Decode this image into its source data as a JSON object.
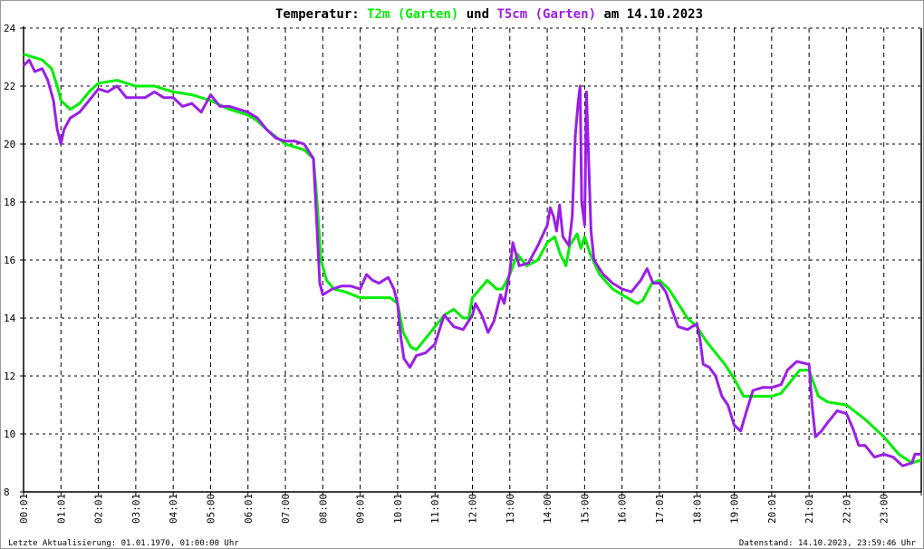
{
  "chart_data": {
    "type": "line",
    "title_parts": [
      {
        "text": "Temperatur: ",
        "color": "#000000"
      },
      {
        "text": "T2m (Garten)",
        "color": "#00ee00"
      },
      {
        "text": " und ",
        "color": "#000000"
      },
      {
        "text": "T5cm (Garten)",
        "color": "#9b1ee6"
      },
      {
        "text": " am 14.10.2023",
        "color": "#000000"
      }
    ],
    "ylim": [
      8,
      24
    ],
    "yticks": [
      "8",
      "10",
      "12",
      "14",
      "16",
      "18",
      "20",
      "22",
      "24"
    ],
    "xlim_hours": [
      0,
      24
    ],
    "xtick_labels": [
      "00:01",
      "01:01",
      "02:01",
      "03:01",
      "04:01",
      "05:00",
      "06:01",
      "07:00",
      "08:00",
      "09:01",
      "10:01",
      "11:01",
      "12:00",
      "13:00",
      "14:00",
      "15:00",
      "16:00",
      "17:01",
      "18:01",
      "19:00",
      "20:01",
      "21:01",
      "22:01",
      "23:00"
    ],
    "grid": true,
    "series": [
      {
        "name": "T2m (Garten)",
        "color": "#00ee00",
        "points": [
          [
            0,
            23.1
          ],
          [
            0.5,
            22.9
          ],
          [
            0.75,
            22.6
          ],
          [
            0.9,
            22.0
          ],
          [
            1.0,
            21.5
          ],
          [
            1.25,
            21.2
          ],
          [
            1.5,
            21.4
          ],
          [
            1.75,
            21.8
          ],
          [
            2.0,
            22.1
          ],
          [
            2.5,
            22.2
          ],
          [
            2.75,
            22.1
          ],
          [
            3.0,
            22.0
          ],
          [
            3.5,
            22.0
          ],
          [
            4.0,
            21.8
          ],
          [
            4.5,
            21.7
          ],
          [
            5.0,
            21.5
          ],
          [
            5.5,
            21.2
          ],
          [
            6.0,
            21.0
          ],
          [
            6.25,
            20.8
          ],
          [
            6.5,
            20.5
          ],
          [
            7.0,
            20.0
          ],
          [
            7.5,
            19.8
          ],
          [
            7.75,
            19.5
          ],
          [
            7.85,
            18.0
          ],
          [
            7.95,
            16.0
          ],
          [
            8.1,
            15.3
          ],
          [
            8.3,
            15.0
          ],
          [
            8.6,
            14.9
          ],
          [
            9.0,
            14.7
          ],
          [
            9.5,
            14.7
          ],
          [
            9.8,
            14.7
          ],
          [
            10.0,
            14.5
          ],
          [
            10.15,
            13.5
          ],
          [
            10.35,
            13.0
          ],
          [
            10.5,
            12.9
          ],
          [
            10.75,
            13.3
          ],
          [
            11.0,
            13.7
          ],
          [
            11.25,
            14.1
          ],
          [
            11.5,
            14.3
          ],
          [
            11.75,
            14.0
          ],
          [
            11.9,
            14.0
          ],
          [
            12.0,
            14.7
          ],
          [
            12.2,
            15.0
          ],
          [
            12.4,
            15.3
          ],
          [
            12.65,
            15.0
          ],
          [
            12.8,
            15.0
          ],
          [
            13.0,
            15.5
          ],
          [
            13.2,
            16.2
          ],
          [
            13.45,
            15.8
          ],
          [
            13.75,
            16.0
          ],
          [
            14.0,
            16.6
          ],
          [
            14.2,
            16.8
          ],
          [
            14.35,
            16.2
          ],
          [
            14.5,
            15.8
          ],
          [
            14.6,
            16.5
          ],
          [
            14.8,
            16.9
          ],
          [
            14.9,
            16.4
          ],
          [
            15.0,
            16.8
          ],
          [
            15.15,
            16.2
          ],
          [
            15.4,
            15.5
          ],
          [
            15.75,
            15.0
          ],
          [
            16.0,
            14.8
          ],
          [
            16.4,
            14.5
          ],
          [
            16.55,
            14.6
          ],
          [
            16.8,
            15.2
          ],
          [
            17.0,
            15.3
          ],
          [
            17.25,
            15.0
          ],
          [
            17.5,
            14.5
          ],
          [
            17.75,
            14.0
          ],
          [
            18.0,
            13.7
          ],
          [
            18.25,
            13.2
          ],
          [
            18.5,
            12.8
          ],
          [
            18.75,
            12.4
          ],
          [
            19.0,
            11.9
          ],
          [
            19.25,
            11.3
          ],
          [
            19.5,
            11.3
          ],
          [
            20.0,
            11.3
          ],
          [
            20.25,
            11.4
          ],
          [
            20.5,
            11.8
          ],
          [
            20.75,
            12.2
          ],
          [
            21.0,
            12.2
          ],
          [
            21.25,
            11.3
          ],
          [
            21.5,
            11.1
          ],
          [
            22.0,
            11.0
          ],
          [
            22.5,
            10.5
          ],
          [
            23.0,
            9.9
          ],
          [
            23.4,
            9.3
          ],
          [
            23.75,
            9.0
          ],
          [
            24.0,
            9.1
          ]
        ]
      },
      {
        "name": "T5cm (Garten)",
        "color": "#9b1ee6",
        "points": [
          [
            0,
            22.7
          ],
          [
            0.15,
            22.9
          ],
          [
            0.3,
            22.5
          ],
          [
            0.5,
            22.6
          ],
          [
            0.65,
            22.2
          ],
          [
            0.8,
            21.5
          ],
          [
            0.9,
            20.5
          ],
          [
            1.0,
            20.0
          ],
          [
            1.08,
            20.5
          ],
          [
            1.25,
            20.9
          ],
          [
            1.5,
            21.1
          ],
          [
            1.75,
            21.5
          ],
          [
            2.0,
            21.9
          ],
          [
            2.25,
            21.8
          ],
          [
            2.5,
            22.0
          ],
          [
            2.75,
            21.6
          ],
          [
            3.0,
            21.6
          ],
          [
            3.25,
            21.6
          ],
          [
            3.5,
            21.8
          ],
          [
            3.75,
            21.6
          ],
          [
            4.0,
            21.6
          ],
          [
            4.25,
            21.3
          ],
          [
            4.5,
            21.4
          ],
          [
            4.75,
            21.1
          ],
          [
            5.0,
            21.7
          ],
          [
            5.25,
            21.3
          ],
          [
            5.5,
            21.3
          ],
          [
            5.75,
            21.2
          ],
          [
            6.0,
            21.1
          ],
          [
            6.25,
            20.9
          ],
          [
            6.5,
            20.5
          ],
          [
            6.75,
            20.2
          ],
          [
            7.0,
            20.1
          ],
          [
            7.25,
            20.1
          ],
          [
            7.5,
            20.0
          ],
          [
            7.75,
            19.5
          ],
          [
            7.83,
            17.5
          ],
          [
            7.92,
            15.2
          ],
          [
            8.0,
            14.8
          ],
          [
            8.25,
            15.0
          ],
          [
            8.5,
            15.1
          ],
          [
            8.75,
            15.1
          ],
          [
            9.0,
            15.0
          ],
          [
            9.17,
            15.5
          ],
          [
            9.33,
            15.3
          ],
          [
            9.5,
            15.2
          ],
          [
            9.75,
            15.4
          ],
          [
            9.9,
            15.0
          ],
          [
            10.0,
            14.5
          ],
          [
            10.08,
            13.4
          ],
          [
            10.17,
            12.6
          ],
          [
            10.33,
            12.3
          ],
          [
            10.5,
            12.7
          ],
          [
            10.75,
            12.8
          ],
          [
            11.0,
            13.1
          ],
          [
            11.17,
            13.8
          ],
          [
            11.25,
            14.1
          ],
          [
            11.5,
            13.7
          ],
          [
            11.75,
            13.6
          ],
          [
            12.0,
            14.1
          ],
          [
            12.08,
            14.5
          ],
          [
            12.25,
            14.1
          ],
          [
            12.42,
            13.5
          ],
          [
            12.58,
            13.9
          ],
          [
            12.75,
            14.8
          ],
          [
            12.85,
            14.5
          ],
          [
            13.0,
            15.6
          ],
          [
            13.08,
            16.6
          ],
          [
            13.25,
            15.8
          ],
          [
            13.5,
            15.9
          ],
          [
            13.75,
            16.5
          ],
          [
            14.0,
            17.2
          ],
          [
            14.08,
            17.8
          ],
          [
            14.17,
            17.5
          ],
          [
            14.25,
            17.0
          ],
          [
            14.33,
            17.9
          ],
          [
            14.42,
            16.8
          ],
          [
            14.58,
            16.5
          ],
          [
            14.67,
            17.5
          ],
          [
            14.75,
            20.3
          ],
          [
            14.83,
            21.5
          ],
          [
            14.88,
            22.0
          ],
          [
            14.92,
            18.0
          ],
          [
            15.0,
            17.2
          ],
          [
            15.05,
            21.8
          ],
          [
            15.12,
            19.0
          ],
          [
            15.17,
            17.0
          ],
          [
            15.25,
            16.0
          ],
          [
            15.5,
            15.5
          ],
          [
            15.75,
            15.2
          ],
          [
            16.0,
            15.0
          ],
          [
            16.25,
            14.9
          ],
          [
            16.5,
            15.3
          ],
          [
            16.67,
            15.7
          ],
          [
            16.83,
            15.2
          ],
          [
            17.0,
            15.2
          ],
          [
            17.17,
            14.9
          ],
          [
            17.33,
            14.3
          ],
          [
            17.5,
            13.7
          ],
          [
            17.75,
            13.6
          ],
          [
            18.0,
            13.8
          ],
          [
            18.08,
            13.3
          ],
          [
            18.17,
            12.4
          ],
          [
            18.33,
            12.3
          ],
          [
            18.5,
            12.0
          ],
          [
            18.67,
            11.3
          ],
          [
            18.83,
            11.0
          ],
          [
            19.0,
            10.3
          ],
          [
            19.17,
            10.1
          ],
          [
            19.33,
            10.8
          ],
          [
            19.5,
            11.5
          ],
          [
            19.75,
            11.6
          ],
          [
            20.0,
            11.6
          ],
          [
            20.25,
            11.7
          ],
          [
            20.42,
            12.2
          ],
          [
            20.67,
            12.5
          ],
          [
            21.0,
            12.4
          ],
          [
            21.08,
            11.0
          ],
          [
            21.17,
            9.9
          ],
          [
            21.33,
            10.1
          ],
          [
            21.5,
            10.4
          ],
          [
            21.75,
            10.8
          ],
          [
            22.0,
            10.7
          ],
          [
            22.17,
            10.2
          ],
          [
            22.33,
            9.6
          ],
          [
            22.5,
            9.6
          ],
          [
            22.75,
            9.2
          ],
          [
            23.0,
            9.3
          ],
          [
            23.25,
            9.2
          ],
          [
            23.5,
            8.9
          ],
          [
            23.75,
            9.0
          ],
          [
            23.83,
            9.3
          ],
          [
            24.0,
            9.3
          ]
        ]
      }
    ]
  },
  "footer": {
    "left": "Letzte Aktualisierung: 01.01.1970, 01:00:00 Uhr",
    "right": "Datenstand: 14.10.2023, 23:59:46 Uhr"
  }
}
